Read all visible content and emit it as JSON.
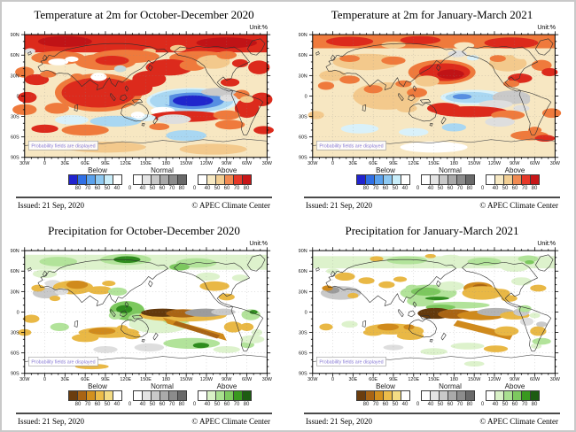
{
  "figure": {
    "unit_label": "Unit:%",
    "probability_label": "Probability fields are displayed",
    "issued": "Issued: 21 Sep, 2020",
    "copyright": "© APEC Climate Center"
  },
  "axes": {
    "lon_labels": [
      "30W",
      "0",
      "30E",
      "60E",
      "90E",
      "120E",
      "150E",
      "180",
      "150W",
      "120W",
      "90W",
      "60W",
      "30W"
    ],
    "lat_labels": [
      "90N",
      "60N",
      "30N",
      "0",
      "30S",
      "60S",
      "90S"
    ]
  },
  "colorbars": {
    "temperature": {
      "zero_label": "0",
      "groups": [
        {
          "label": "Below",
          "colors": [
            "#2123cf",
            "#2f6fe6",
            "#5aa2ee",
            "#8ec9f2",
            "#c9edf9",
            "#ffffff"
          ],
          "edges": [
            "80",
            "70",
            "60",
            "50",
            "40"
          ]
        },
        {
          "label": "Normal",
          "colors": [
            "#ffffff",
            "#e4e4e4",
            "#c9c9c9",
            "#aaaaaa",
            "#8c8c8c",
            "#696969"
          ],
          "edges": [
            "40",
            "50",
            "60",
            "70",
            "80"
          ]
        },
        {
          "label": "Above",
          "colors": [
            "#ffffff",
            "#f7e9c3",
            "#f2cf94",
            "#f18a52",
            "#e63828",
            "#c81618"
          ],
          "edges": [
            "40",
            "50",
            "60",
            "70",
            "80"
          ]
        }
      ]
    },
    "precipitation": {
      "zero_label": "0",
      "groups": [
        {
          "label": "Below",
          "colors": [
            "#6b3d0e",
            "#a96414",
            "#d3901e",
            "#ecbc4a",
            "#f4dc84",
            "#ffffff"
          ],
          "edges": [
            "80",
            "70",
            "60",
            "50",
            "40"
          ]
        },
        {
          "label": "Normal",
          "colors": [
            "#ffffff",
            "#e4e4e4",
            "#c9c9c9",
            "#aaaaaa",
            "#8c8c8c",
            "#696969"
          ],
          "edges": [
            "40",
            "50",
            "60",
            "70",
            "80"
          ]
        },
        {
          "label": "Above",
          "colors": [
            "#ffffff",
            "#d9f1c7",
            "#a9e090",
            "#7dc95f",
            "#39991f",
            "#1d5c12"
          ],
          "edges": [
            "40",
            "50",
            "60",
            "70",
            "80"
          ]
        }
      ]
    }
  },
  "panels": [
    {
      "title": "Temperature at 2m for October-December 2020",
      "variable": "temperature"
    },
    {
      "title": "Temperature at 2m for January-March 2021",
      "variable": "temperature"
    },
    {
      "title": "Precipitation for October-December 2020",
      "variable": "precipitation"
    },
    {
      "title": "Precipitation for January-March 2021",
      "variable": "precipitation"
    }
  ]
}
